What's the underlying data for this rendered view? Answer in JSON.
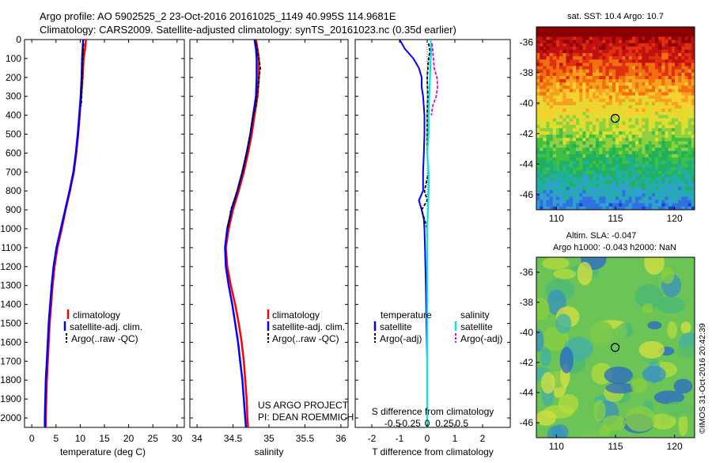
{
  "header": {
    "line1": "Argo profile: AO 5902525_2 23-Oct-2016 20161025_1149 40.995S 114.9681E",
    "line2": "Climatology: CARS2009. Satellite-adjusted climatology: synTS_20161023.nc (0.35d earlier)"
  },
  "colors": {
    "climatology": "#ff0000",
    "satellite": "#0000ff",
    "argo": "#000000",
    "salinity_satellite": "#00e5e5",
    "salinity_argo": "#e000e0"
  },
  "legend_left": {
    "climatology": "climatology",
    "satellite": "satellite-adj. clim.",
    "argo": "Argo(..raw -QC)"
  },
  "legend_mid": {
    "climatology": "climatology",
    "satellite": "satellite-adj. clim.",
    "argo": "Argo(..raw -QC)"
  },
  "legend_right": {
    "temp_header": "temperature",
    "sal_header": "salinity",
    "temp_sat": "satellite",
    "temp_argo": "Argo(-adj)",
    "sal_sat": "satellite",
    "sal_argo": "Argo(-adj)"
  },
  "project_note": {
    "line1": "US ARGO PROJECT",
    "line2": "PI: DEAN ROEMMICH"
  },
  "sst_panel": {
    "title": "sat. SST: 10.4 Argo: 10.7"
  },
  "sla_panel": {
    "title1": "Altim. SLA: -0.047",
    "title2": "Argo h1000: -0.043 h2000: NaN"
  },
  "stamp": "©IMOS 31-Oct-2016 20:42:39",
  "chart_data": [
    {
      "type": "line",
      "xlabel": "temperature (deg C)",
      "ylabel": "",
      "xlim": [
        -1.5,
        31.5
      ],
      "ylim": [
        2050,
        0
      ],
      "xticks": [
        0,
        5,
        10,
        15,
        20,
        25,
        30
      ],
      "yticks": [
        0,
        100,
        200,
        300,
        400,
        500,
        600,
        700,
        800,
        900,
        1000,
        1100,
        1200,
        1300,
        1400,
        1500,
        1600,
        1700,
        1800,
        1900,
        2000
      ],
      "series": [
        {
          "name": "climatology",
          "points": [
            [
              11.2,
              0
            ],
            [
              11,
              50
            ],
            [
              10.7,
              100
            ],
            [
              10.5,
              200
            ],
            [
              10.2,
              300
            ],
            [
              9.9,
              400
            ],
            [
              9.6,
              500
            ],
            [
              9.2,
              600
            ],
            [
              8.7,
              700
            ],
            [
              7.9,
              800
            ],
            [
              7,
              900
            ],
            [
              6.2,
              1000
            ],
            [
              5.3,
              1100
            ],
            [
              4.7,
              1200
            ],
            [
              4.3,
              1300
            ],
            [
              4,
              1400
            ],
            [
              3.7,
              1500
            ],
            [
              3.5,
              1600
            ],
            [
              3.3,
              1700
            ],
            [
              3.1,
              1800
            ],
            [
              3,
              1900
            ],
            [
              2.9,
              2000
            ],
            [
              2.9,
              2050
            ]
          ]
        },
        {
          "name": "satellite-adj. clim.",
          "points": [
            [
              10.6,
              0
            ],
            [
              10.5,
              50
            ],
            [
              10.4,
              100
            ],
            [
              10.3,
              200
            ],
            [
              10.1,
              300
            ],
            [
              9.8,
              400
            ],
            [
              9.5,
              500
            ],
            [
              9.1,
              600
            ],
            [
              8.6,
              700
            ],
            [
              7.8,
              800
            ],
            [
              6.9,
              900
            ],
            [
              6,
              1000
            ],
            [
              5.1,
              1100
            ],
            [
              4.5,
              1200
            ],
            [
              4.1,
              1300
            ],
            [
              3.8,
              1400
            ],
            [
              3.5,
              1500
            ],
            [
              3.3,
              1600
            ],
            [
              3.1,
              1700
            ],
            [
              2.9,
              1800
            ],
            [
              2.8,
              1900
            ],
            [
              2.7,
              2000
            ],
            [
              2.7,
              2050
            ]
          ]
        },
        {
          "name": "Argo(..raw -QC)",
          "points": [
            [
              10.7,
              20
            ],
            [
              10.6,
              60
            ],
            [
              10.5,
              100
            ],
            [
              10.4,
              200
            ],
            [
              10.3,
              300
            ],
            [
              10.2,
              350
            ]
          ]
        }
      ]
    },
    {
      "type": "line",
      "xlabel": "salinity",
      "ylabel": "",
      "xlim": [
        33.9,
        36.1
      ],
      "ylim": [
        2050,
        0
      ],
      "xticks": [
        34,
        34.5,
        35,
        35.5,
        36
      ],
      "series": [
        {
          "name": "climatology",
          "points": [
            [
              34.82,
              0
            ],
            [
              34.84,
              50
            ],
            [
              34.86,
              100
            ],
            [
              34.86,
              200
            ],
            [
              34.84,
              300
            ],
            [
              34.8,
              400
            ],
            [
              34.76,
              500
            ],
            [
              34.71,
              600
            ],
            [
              34.65,
              700
            ],
            [
              34.58,
              800
            ],
            [
              34.5,
              900
            ],
            [
              34.44,
              1000
            ],
            [
              34.4,
              1100
            ],
            [
              34.42,
              1200
            ],
            [
              34.47,
              1300
            ],
            [
              34.53,
              1400
            ],
            [
              34.58,
              1500
            ],
            [
              34.62,
              1600
            ],
            [
              34.65,
              1700
            ],
            [
              34.67,
              1800
            ],
            [
              34.69,
              1900
            ],
            [
              34.7,
              2000
            ],
            [
              34.71,
              2050
            ]
          ]
        },
        {
          "name": "satellite-adj. clim.",
          "points": [
            [
              34.8,
              0
            ],
            [
              34.82,
              50
            ],
            [
              34.83,
              100
            ],
            [
              34.83,
              200
            ],
            [
              34.82,
              300
            ],
            [
              34.78,
              400
            ],
            [
              34.74,
              500
            ],
            [
              34.69,
              600
            ],
            [
              34.63,
              700
            ],
            [
              34.56,
              800
            ],
            [
              34.48,
              900
            ],
            [
              34.42,
              1000
            ],
            [
              34.39,
              1100
            ],
            [
              34.4,
              1200
            ],
            [
              34.44,
              1300
            ],
            [
              34.49,
              1400
            ],
            [
              34.53,
              1500
            ],
            [
              34.57,
              1600
            ],
            [
              34.6,
              1700
            ],
            [
              34.63,
              1800
            ],
            [
              34.65,
              1900
            ],
            [
              34.67,
              2000
            ],
            [
              34.68,
              2050
            ]
          ]
        },
        {
          "name": "Argo(..raw -QC)",
          "points": [
            [
              34.82,
              20
            ],
            [
              34.84,
              60
            ],
            [
              34.88,
              150
            ],
            [
              34.86,
              200
            ],
            [
              34.85,
              250
            ],
            [
              34.83,
              300
            ],
            [
              34.82,
              350
            ],
            [
              34.78,
              400
            ],
            [
              34.74,
              500
            ],
            [
              34.69,
              600
            ],
            [
              34.63,
              700
            ],
            [
              34.56,
              800
            ],
            [
              34.47,
              900
            ],
            [
              34.45,
              950
            ],
            [
              34.42,
              1000
            ]
          ]
        }
      ]
    },
    {
      "type": "line",
      "xlabel": "T difference from climatology",
      "x2label": "S difference from climatology",
      "ylabel": "",
      "xlim": [
        -2.6,
        3
      ],
      "ylim": [
        2050,
        0
      ],
      "xticks": [
        -2,
        -1,
        0,
        1,
        2
      ],
      "x2ticks": [
        -0.5,
        -0.25,
        0,
        0.25,
        0.5
      ],
      "x2tick_labels": [
        "-0.5",
        "-0.25",
        "0",
        "0.25",
        "0.5"
      ],
      "series": [
        {
          "name": "temperature satellite",
          "points": [
            [
              -1,
              0
            ],
            [
              -0.8,
              50
            ],
            [
              -0.5,
              100
            ],
            [
              -0.3,
              150
            ],
            [
              -0.2,
              200
            ],
            [
              -0.2,
              250
            ],
            [
              -0.15,
              300
            ],
            [
              -0.1,
              400
            ],
            [
              -0.1,
              500
            ],
            [
              -0.12,
              600
            ],
            [
              -0.15,
              700
            ],
            [
              -0.15,
              800
            ],
            [
              -0.3,
              850
            ],
            [
              -0.2,
              900
            ],
            [
              -0.12,
              950
            ],
            [
              -0.1,
              1000
            ],
            [
              -0.08,
              1100
            ],
            [
              -0.05,
              1300
            ],
            [
              -0.03,
              1500
            ],
            [
              0,
              1700
            ],
            [
              0,
              2050
            ]
          ]
        },
        {
          "name": "temperature Argo(-adj)",
          "points": [
            [
              0.05,
              20
            ],
            [
              0.1,
              60
            ],
            [
              0.05,
              100
            ],
            [
              0,
              200
            ],
            [
              0.02,
              300
            ],
            [
              0,
              400
            ],
            [
              0,
              500
            ],
            [
              0,
              600
            ],
            [
              0.05,
              700
            ],
            [
              -0.1,
              800
            ],
            [
              0,
              850
            ],
            [
              -0.2,
              900
            ],
            [
              -0.1,
              950
            ],
            [
              0,
              1000
            ]
          ]
        },
        {
          "name": "salinity satellite",
          "points": [
            [
              0.05,
              0
            ],
            [
              0.06,
              50
            ],
            [
              0.05,
              100
            ],
            [
              0.04,
              200
            ],
            [
              0.03,
              300
            ],
            [
              0.02,
              400
            ],
            [
              0.02,
              500
            ],
            [
              0,
              600
            ],
            [
              0.02,
              700
            ],
            [
              0.02,
              800
            ],
            [
              0.01,
              900
            ],
            [
              0,
              1000
            ],
            [
              0,
              1100
            ],
            [
              0,
              1300
            ],
            [
              0,
              1500
            ],
            [
              0,
              2050
            ]
          ]
        },
        {
          "name": "salinity Argo(-adj)",
          "points": [
            [
              0.07,
              20
            ],
            [
              0.08,
              60
            ],
            [
              0.09,
              100
            ],
            [
              0.1,
              150
            ],
            [
              0.14,
              200
            ],
            [
              0.15,
              250
            ],
            [
              0.13,
              300
            ],
            [
              0.08,
              350
            ],
            [
              0.06,
              400
            ]
          ]
        }
      ]
    }
  ],
  "map_axes": {
    "xticks": [
      110,
      115,
      120
    ],
    "yticks": [
      -36,
      -38,
      -40,
      -42,
      -44,
      -46
    ],
    "xlim": [
      108.3,
      121.7
    ],
    "ylim": [
      -47,
      -35
    ]
  },
  "argo_position": {
    "lon": 114.97,
    "lat": -41
  }
}
